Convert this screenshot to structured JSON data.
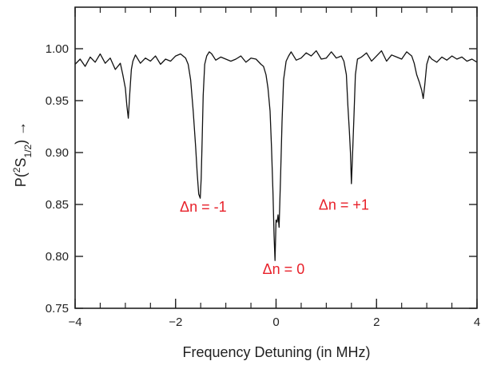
{
  "chart_data": {
    "type": "line",
    "xlabel": "Frequency Detuning (in MHz)",
    "ylabel_main": "P(",
    "ylabel_sup": "2",
    "ylabel_s": "S",
    "ylabel_sub": "1/2",
    "ylabel_end": ") →",
    "xlim": [
      -4,
      4
    ],
    "ylim": [
      0.75,
      1.04
    ],
    "xticks": [
      -4,
      -2,
      0,
      2,
      4
    ],
    "xtick_labels": [
      "−4",
      "−2",
      "0",
      "2",
      "4"
    ],
    "yticks": [
      0.75,
      0.8,
      0.85,
      0.9,
      0.95,
      1.0
    ],
    "ytick_labels": [
      "0.75",
      "0.80",
      "0.85",
      "0.90",
      "0.95",
      "1.00"
    ],
    "grid": false,
    "series": [
      {
        "x": [
          -4.0,
          -3.9,
          -3.8,
          -3.7,
          -3.6,
          -3.5,
          -3.4,
          -3.3,
          -3.2,
          -3.1,
          -3.05,
          -3.0,
          -2.97,
          -2.94,
          -2.91,
          -2.88,
          -2.85,
          -2.8,
          -2.7,
          -2.6,
          -2.5,
          -2.4,
          -2.3,
          -2.2,
          -2.1,
          -2.0,
          -1.9,
          -1.8,
          -1.75,
          -1.7,
          -1.65,
          -1.6,
          -1.57,
          -1.54,
          -1.51,
          -1.49,
          -1.47,
          -1.45,
          -1.42,
          -1.38,
          -1.33,
          -1.28,
          -1.2,
          -1.1,
          -1.0,
          -0.9,
          -0.8,
          -0.7,
          -0.6,
          -0.5,
          -0.4,
          -0.3,
          -0.25,
          -0.2,
          -0.16,
          -0.12,
          -0.09,
          -0.06,
          -0.04,
          -0.02,
          0.0,
          0.02,
          0.04,
          0.06,
          0.09,
          0.12,
          0.15,
          0.2,
          0.25,
          0.3,
          0.4,
          0.5,
          0.6,
          0.7,
          0.8,
          0.9,
          1.0,
          1.1,
          1.2,
          1.3,
          1.35,
          1.4,
          1.43,
          1.46,
          1.48,
          1.5,
          1.52,
          1.55,
          1.58,
          1.62,
          1.7,
          1.8,
          1.9,
          2.0,
          2.1,
          2.2,
          2.3,
          2.4,
          2.5,
          2.6,
          2.7,
          2.75,
          2.8,
          2.85,
          2.9,
          2.93,
          2.96,
          3.0,
          3.05,
          3.1,
          3.2,
          3.3,
          3.4,
          3.5,
          3.6,
          3.7,
          3.8,
          3.9,
          4.0
        ],
        "y": [
          0.985,
          0.99,
          0.983,
          0.992,
          0.987,
          0.995,
          0.986,
          0.991,
          0.98,
          0.986,
          0.975,
          0.962,
          0.945,
          0.933,
          0.958,
          0.98,
          0.988,
          0.994,
          0.986,
          0.991,
          0.988,
          0.993,
          0.985,
          0.99,
          0.988,
          0.993,
          0.995,
          0.991,
          0.985,
          0.97,
          0.94,
          0.905,
          0.88,
          0.86,
          0.856,
          0.875,
          0.915,
          0.955,
          0.985,
          0.993,
          0.997,
          0.995,
          0.989,
          0.992,
          0.99,
          0.988,
          0.99,
          0.993,
          0.987,
          0.991,
          0.99,
          0.985,
          0.983,
          0.975,
          0.962,
          0.94,
          0.905,
          0.86,
          0.82,
          0.796,
          0.835,
          0.833,
          0.84,
          0.828,
          0.878,
          0.93,
          0.97,
          0.988,
          0.993,
          0.997,
          0.989,
          0.991,
          0.996,
          0.993,
          0.998,
          0.99,
          0.991,
          0.997,
          0.991,
          0.993,
          0.988,
          0.975,
          0.945,
          0.92,
          0.9,
          0.87,
          0.895,
          0.935,
          0.975,
          0.99,
          0.992,
          0.996,
          0.988,
          0.993,
          0.998,
          0.988,
          0.994,
          0.992,
          0.99,
          0.997,
          0.993,
          0.986,
          0.975,
          0.968,
          0.96,
          0.952,
          0.965,
          0.985,
          0.993,
          0.99,
          0.987,
          0.992,
          0.989,
          0.993,
          0.99,
          0.992,
          0.988,
          0.99,
          0.987
        ]
      }
    ],
    "annotations": [
      {
        "text": "Δn = -1",
        "x": -1.45,
        "y": 0.843
      },
      {
        "text": "Δn = 0",
        "x": 0.15,
        "y": 0.783
      },
      {
        "text": "Δn = +1",
        "x": 1.35,
        "y": 0.845
      }
    ]
  }
}
